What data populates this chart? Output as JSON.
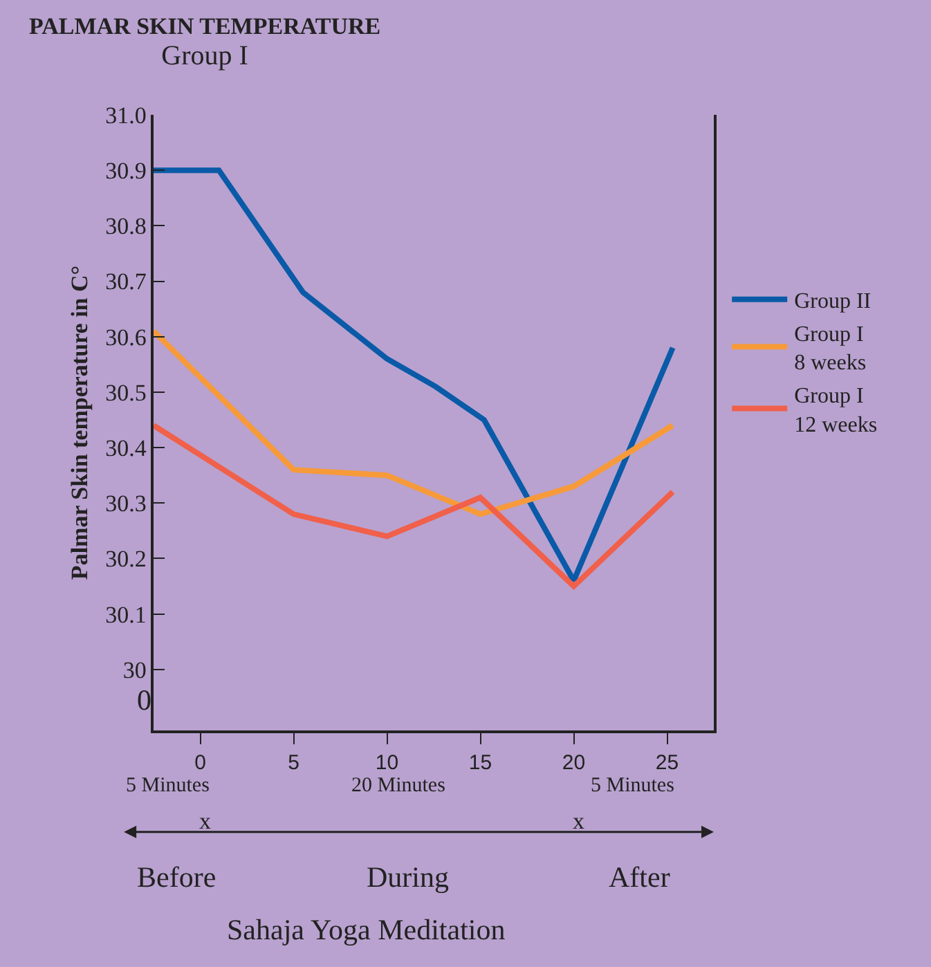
{
  "chart_data": {
    "type": "line",
    "title": "PALMAR SKIN TEMPERATURE",
    "subtitle": "Group I",
    "xlabel": "Sahaja Yoga Meditation",
    "ylabel": "Palmar Skin temperature in C°",
    "series": [
      {
        "name": "Group II",
        "color": "#0a5aa8",
        "x": [
          -2.5,
          1.0,
          5.5,
          10,
          12.6,
          15.2,
          20,
          25.3
        ],
        "values": [
          30.9,
          30.9,
          30.68,
          30.56,
          30.51,
          30.45,
          30.16,
          30.58
        ]
      },
      {
        "name": "Group I\n8 weeks",
        "color": "#f79a3a",
        "x": [
          -2.5,
          5,
          10,
          15,
          20,
          25.3
        ],
        "values": [
          30.61,
          30.36,
          30.35,
          30.28,
          30.33,
          30.44
        ]
      },
      {
        "name": "Group I\n12 weeks",
        "color": "#f0604a",
        "x": [
          -2.5,
          5,
          10,
          15,
          20,
          25.3
        ],
        "values": [
          30.44,
          30.28,
          30.24,
          30.31,
          30.15,
          30.32
        ]
      }
    ],
    "xlim": [
      -2.5,
      27.5
    ],
    "xticks": [
      0,
      5,
      10,
      15,
      20,
      25
    ],
    "ylim": [
      29.89,
      31.0
    ],
    "yticks": [
      30,
      30.1,
      30.2,
      30.3,
      30.4,
      30.5,
      30.6,
      30.7,
      30.8,
      30.9,
      {
        "value": 31.0,
        "label": "31.0"
      }
    ],
    "annotations": [
      "5 Minutes",
      "20 Minutes",
      "5 Minutes",
      "x",
      "x",
      "Before",
      "During",
      "After",
      "0"
    ],
    "legend": "right",
    "grid": false,
    "marker": "none",
    "line_style": "solid"
  }
}
